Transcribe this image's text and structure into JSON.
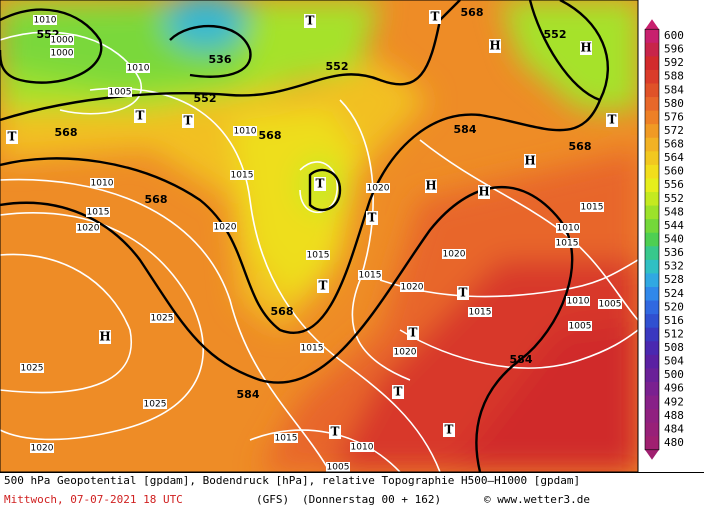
{
  "map": {
    "colorbar": {
      "labels": [
        "600",
        "596",
        "592",
        "588",
        "584",
        "580",
        "576",
        "572",
        "568",
        "564",
        "560",
        "556",
        "552",
        "548",
        "544",
        "540",
        "536",
        "532",
        "528",
        "524",
        "520",
        "516",
        "512",
        "508",
        "504",
        "500",
        "496",
        "492",
        "488",
        "484",
        "480"
      ],
      "colors": [
        "#c8206e",
        "#c8244a",
        "#d22a2c",
        "#da3c2a",
        "#e05228",
        "#e8682a",
        "#ee8026",
        "#f09a24",
        "#f2b224",
        "#f2c820",
        "#f2de1c",
        "#e6ee1c",
        "#c4ea20",
        "#9ce22a",
        "#74d83a",
        "#4ecf52",
        "#38c88c",
        "#30c0c4",
        "#30a8e2",
        "#3088ea",
        "#3068e0",
        "#3050d0",
        "#3a38c0",
        "#4a28b0",
        "#5a20a2",
        "#6a2098",
        "#7a2090",
        "#882088",
        "#902080",
        "#982078",
        "#a02070"
      ]
    },
    "geopotential_labels": [
      "552",
      "536",
      "552",
      "552",
      "552",
      "568",
      "568",
      "568",
      "568",
      "568",
      "584",
      "584",
      "584",
      "568"
    ],
    "isobar_labels": [
      "1010",
      "1000",
      "1000",
      "1010",
      "1005",
      "1010",
      "1015",
      "1010",
      "1020",
      "1015",
      "1020",
      "1025",
      "1025",
      "1020",
      "1020",
      "1015",
      "1015",
      "1020",
      "1020",
      "1015",
      "1010",
      "1015",
      "1005",
      "1015",
      "1010",
      "1005",
      "1015",
      "1020",
      "1025",
      "1010",
      "1015",
      "1005"
    ],
    "pressure_centers": [
      "H",
      "H",
      "H",
      "H",
      "H",
      "H",
      "T",
      "T",
      "T",
      "T",
      "T",
      "T",
      "T",
      "T",
      "T",
      "T",
      "T",
      "T",
      "T",
      "T"
    ],
    "footer": {
      "line1": "500 hPa Geopotential [gpdam], Bodendruck [hPa], relative Topographie H500–H1000 [gpdam]",
      "date": "Mittwoch, 07-07-2021  18 UTC",
      "model": "(GFS)",
      "run": "(Donnerstag 00 + 162)",
      "credit": "© www.wetter3.de"
    }
  }
}
